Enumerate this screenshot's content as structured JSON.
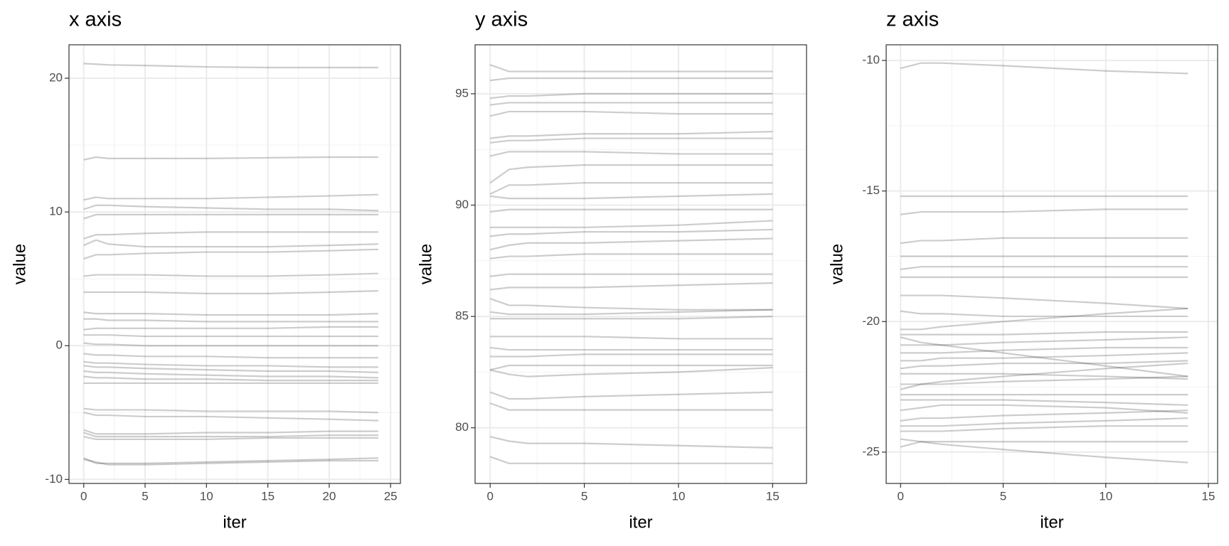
{
  "chart_data": [
    {
      "type": "line",
      "title": "x axis",
      "x_label": "iter",
      "y_label": "value",
      "color": "#000000",
      "opacity": 0.2,
      "grid": true,
      "xlim": [
        -1.2,
        25.8
      ],
      "xticks": [
        0,
        5,
        10,
        15,
        20,
        25
      ],
      "ylim": [
        -10.3,
        22.5
      ],
      "yticks": [
        -10,
        0,
        10,
        20
      ],
      "x": [
        0,
        1,
        2,
        5,
        10,
        15,
        20,
        24
      ],
      "series": [
        {
          "values": [
            21.1,
            21.05,
            21.0,
            20.95,
            20.85,
            20.8,
            20.8,
            20.8
          ]
        },
        {
          "values": [
            13.9,
            14.1,
            14.0,
            14.0,
            14.0,
            14.05,
            14.1,
            14.1
          ]
        },
        {
          "values": [
            10.9,
            11.1,
            11.0,
            11.0,
            11.0,
            11.1,
            11.2,
            11.3
          ]
        },
        {
          "values": [
            10.2,
            10.5,
            10.5,
            10.4,
            10.3,
            10.2,
            10.2,
            10.1
          ]
        },
        {
          "values": [
            9.5,
            9.8,
            9.8,
            9.8,
            9.8,
            9.8,
            9.8,
            9.8
          ]
        },
        {
          "values": [
            8.0,
            8.3,
            8.3,
            8.4,
            8.5,
            8.5,
            8.5,
            8.5
          ]
        },
        {
          "values": [
            7.5,
            7.9,
            7.6,
            7.4,
            7.4,
            7.4,
            7.5,
            7.6
          ]
        },
        {
          "values": [
            6.5,
            6.8,
            6.8,
            6.9,
            7.0,
            7.0,
            7.1,
            7.2
          ]
        },
        {
          "values": [
            5.2,
            5.3,
            5.3,
            5.3,
            5.2,
            5.2,
            5.3,
            5.4
          ]
        },
        {
          "values": [
            4.0,
            4.0,
            4.0,
            4.0,
            3.9,
            3.9,
            4.0,
            4.1
          ]
        },
        {
          "values": [
            2.5,
            2.4,
            2.4,
            2.4,
            2.3,
            2.3,
            2.3,
            2.4
          ]
        },
        {
          "values": [
            2.0,
            2.0,
            1.9,
            1.9,
            1.8,
            1.8,
            1.8,
            1.8
          ]
        },
        {
          "values": [
            1.2,
            1.3,
            1.3,
            1.3,
            1.3,
            1.3,
            1.4,
            1.4
          ]
        },
        {
          "values": [
            0.8,
            0.8,
            0.8,
            0.7,
            0.7,
            0.7,
            0.7,
            0.7
          ]
        },
        {
          "values": [
            0.2,
            0.1,
            0.1,
            0.0,
            0.0,
            0.0,
            0.0,
            0.0
          ]
        },
        {
          "values": [
            -0.6,
            -0.7,
            -0.7,
            -0.8,
            -0.8,
            -0.9,
            -0.9,
            -0.9
          ]
        },
        {
          "values": [
            -1.2,
            -1.3,
            -1.3,
            -1.4,
            -1.5,
            -1.5,
            -1.6,
            -1.6
          ]
        },
        {
          "values": [
            -1.5,
            -1.6,
            -1.6,
            -1.7,
            -1.8,
            -1.9,
            -1.9,
            -2.0
          ]
        },
        {
          "values": [
            -1.9,
            -2.0,
            -2.0,
            -2.1,
            -2.2,
            -2.3,
            -2.3,
            -2.4
          ]
        },
        {
          "values": [
            -2.3,
            -2.4,
            -2.4,
            -2.5,
            -2.5,
            -2.6,
            -2.6,
            -2.6
          ]
        },
        {
          "values": [
            -2.8,
            -2.8,
            -2.8,
            -2.8,
            -2.8,
            -2.8,
            -2.8,
            -2.8
          ]
        },
        {
          "values": [
            -4.7,
            -4.8,
            -4.8,
            -4.8,
            -4.9,
            -4.9,
            -4.9,
            -5.0
          ]
        },
        {
          "values": [
            -5.0,
            -5.2,
            -5.2,
            -5.3,
            -5.3,
            -5.4,
            -5.5,
            -5.6
          ]
        },
        {
          "values": [
            -6.3,
            -6.6,
            -6.6,
            -6.6,
            -6.5,
            -6.5,
            -6.4,
            -6.4
          ]
        },
        {
          "values": [
            -6.5,
            -6.8,
            -6.8,
            -6.8,
            -6.8,
            -6.8,
            -6.7,
            -6.7
          ]
        },
        {
          "values": [
            -6.8,
            -7.0,
            -7.0,
            -7.0,
            -7.0,
            -6.9,
            -6.9,
            -6.9
          ]
        },
        {
          "values": [
            -8.4,
            -8.8,
            -8.8,
            -8.8,
            -8.7,
            -8.6,
            -8.5,
            -8.4
          ]
        },
        {
          "values": [
            -8.5,
            -8.7,
            -8.9,
            -8.9,
            -8.8,
            -8.7,
            -8.6,
            -8.6
          ]
        }
      ]
    },
    {
      "type": "line",
      "title": "y axis",
      "x_label": "iter",
      "y_label": "value",
      "color": "#000000",
      "opacity": 0.2,
      "grid": true,
      "xlim": [
        -0.8,
        16.8
      ],
      "xticks": [
        0,
        5,
        10,
        15
      ],
      "ylim": [
        77.5,
        97.2
      ],
      "yticks": [
        80,
        85,
        90,
        95
      ],
      "x": [
        0,
        1,
        2,
        5,
        10,
        15
      ],
      "series": [
        {
          "values": [
            96.3,
            96.0,
            96.0,
            96.0,
            96.0,
            96.0
          ]
        },
        {
          "values": [
            95.6,
            95.7,
            95.7,
            95.7,
            95.7,
            95.7
          ]
        },
        {
          "values": [
            94.8,
            94.9,
            94.9,
            95.0,
            95.0,
            95.0
          ]
        },
        {
          "values": [
            94.5,
            94.6,
            94.6,
            94.6,
            94.6,
            94.6
          ]
        },
        {
          "values": [
            94.0,
            94.2,
            94.2,
            94.2,
            94.1,
            94.1
          ]
        },
        {
          "values": [
            93.0,
            93.1,
            93.1,
            93.2,
            93.2,
            93.3
          ]
        },
        {
          "values": [
            92.8,
            92.9,
            92.9,
            93.0,
            93.0,
            93.0
          ]
        },
        {
          "values": [
            92.2,
            92.4,
            92.4,
            92.4,
            92.3,
            92.3
          ]
        },
        {
          "values": [
            91.0,
            91.6,
            91.7,
            91.8,
            91.8,
            91.8
          ]
        },
        {
          "values": [
            90.5,
            90.9,
            90.9,
            91.0,
            91.0,
            91.0
          ]
        },
        {
          "values": [
            90.4,
            90.3,
            90.3,
            90.3,
            90.4,
            90.5
          ]
        },
        {
          "values": [
            89.7,
            89.8,
            89.8,
            89.8,
            89.8,
            89.8
          ]
        },
        {
          "values": [
            89.0,
            89.0,
            89.0,
            89.0,
            89.1,
            89.3
          ]
        },
        {
          "values": [
            88.6,
            88.7,
            88.7,
            88.8,
            88.8,
            88.9
          ]
        },
        {
          "values": [
            88.0,
            88.2,
            88.3,
            88.3,
            88.4,
            88.5
          ]
        },
        {
          "values": [
            87.6,
            87.7,
            87.7,
            87.8,
            87.8,
            87.8
          ]
        },
        {
          "values": [
            86.8,
            86.9,
            86.9,
            86.9,
            86.9,
            86.9
          ]
        },
        {
          "values": [
            86.2,
            86.3,
            86.3,
            86.3,
            86.4,
            86.5
          ]
        },
        {
          "values": [
            85.8,
            85.5,
            85.5,
            85.4,
            85.3,
            85.3
          ]
        },
        {
          "values": [
            85.2,
            85.1,
            85.1,
            85.1,
            85.2,
            85.3
          ]
        },
        {
          "values": [
            84.9,
            84.9,
            84.9,
            84.9,
            84.9,
            85.0
          ]
        },
        {
          "values": [
            84.1,
            84.1,
            84.1,
            84.1,
            84.0,
            84.0
          ]
        },
        {
          "values": [
            83.6,
            83.5,
            83.5,
            83.5,
            83.5,
            83.5
          ]
        },
        {
          "values": [
            83.2,
            83.2,
            83.2,
            83.3,
            83.3,
            83.3
          ]
        },
        {
          "values": [
            82.6,
            82.8,
            82.8,
            82.8,
            82.8,
            82.8
          ]
        },
        {
          "values": [
            82.6,
            82.4,
            82.3,
            82.4,
            82.5,
            82.7
          ]
        },
        {
          "values": [
            81.6,
            81.3,
            81.3,
            81.4,
            81.5,
            81.6
          ]
        },
        {
          "values": [
            81.1,
            80.8,
            80.8,
            80.8,
            80.8,
            80.8
          ]
        },
        {
          "values": [
            79.6,
            79.4,
            79.3,
            79.3,
            79.2,
            79.1
          ]
        },
        {
          "values": [
            78.7,
            78.4,
            78.4,
            78.4,
            78.4,
            78.4
          ]
        }
      ]
    },
    {
      "type": "line",
      "title": "z axis",
      "x_label": "iter",
      "y_label": "value",
      "color": "#000000",
      "opacity": 0.2,
      "grid": true,
      "xlim": [
        -0.7,
        15.45
      ],
      "xticks": [
        0,
        5,
        10,
        15
      ],
      "ylim": [
        -26.2,
        -9.4
      ],
      "yticks": [
        -25,
        -20,
        -15,
        -10
      ],
      "x": [
        0,
        1,
        2,
        5,
        10,
        14
      ],
      "series": [
        {
          "values": [
            -10.3,
            -10.1,
            -10.1,
            -10.2,
            -10.4,
            -10.5
          ]
        },
        {
          "values": [
            -15.2,
            -15.2,
            -15.2,
            -15.2,
            -15.2,
            -15.2
          ]
        },
        {
          "values": [
            -15.9,
            -15.8,
            -15.8,
            -15.8,
            -15.7,
            -15.7
          ]
        },
        {
          "values": [
            -17.0,
            -16.9,
            -16.9,
            -16.8,
            -16.8,
            -16.8
          ]
        },
        {
          "values": [
            -17.5,
            -17.5,
            -17.5,
            -17.5,
            -17.5,
            -17.5
          ]
        },
        {
          "values": [
            -18.0,
            -17.9,
            -17.9,
            -17.9,
            -17.9,
            -17.9
          ]
        },
        {
          "values": [
            -18.3,
            -18.3,
            -18.3,
            -18.3,
            -18.3,
            -18.3
          ]
        },
        {
          "values": [
            -19.0,
            -19.0,
            -19.0,
            -19.1,
            -19.3,
            -19.5
          ]
        },
        {
          "values": [
            -19.6,
            -19.7,
            -19.7,
            -19.8,
            -19.8,
            -19.8
          ]
        },
        {
          "values": [
            -20.3,
            -20.3,
            -20.2,
            -20.0,
            -19.7,
            -19.5
          ]
        },
        {
          "values": [
            -20.5,
            -20.5,
            -20.5,
            -20.5,
            -20.4,
            -20.4
          ]
        },
        {
          "values": [
            -20.9,
            -20.9,
            -20.9,
            -20.8,
            -20.7,
            -20.6
          ]
        },
        {
          "values": [
            -21.2,
            -21.2,
            -21.2,
            -21.1,
            -21.0,
            -21.0
          ]
        },
        {
          "values": [
            -21.5,
            -21.5,
            -21.4,
            -21.4,
            -21.3,
            -21.2
          ]
        },
        {
          "values": [
            -21.8,
            -21.7,
            -21.7,
            -21.6,
            -21.6,
            -21.5
          ]
        },
        {
          "values": [
            -22.0,
            -22.0,
            -22.0,
            -22.0,
            -22.1,
            -22.2
          ]
        },
        {
          "values": [
            -22.4,
            -22.4,
            -22.4,
            -22.3,
            -22.2,
            -22.1
          ]
        },
        {
          "values": [
            -22.8,
            -22.8,
            -22.8,
            -22.8,
            -22.8,
            -22.8
          ]
        },
        {
          "values": [
            -23.0,
            -23.0,
            -23.0,
            -23.0,
            -23.1,
            -23.2
          ]
        },
        {
          "values": [
            -23.4,
            -23.3,
            -23.2,
            -23.2,
            -23.3,
            -23.5
          ]
        },
        {
          "values": [
            -23.8,
            -23.7,
            -23.7,
            -23.6,
            -23.5,
            -23.4
          ]
        },
        {
          "values": [
            -24.0,
            -24.0,
            -24.0,
            -23.9,
            -23.8,
            -23.7
          ]
        },
        {
          "values": [
            -24.2,
            -24.2,
            -24.2,
            -24.1,
            -24.0,
            -24.0
          ]
        },
        {
          "values": [
            -24.5,
            -24.6,
            -24.6,
            -24.6,
            -24.6,
            -24.6
          ]
        },
        {
          "values": [
            -24.8,
            -24.6,
            -24.7,
            -24.9,
            -25.2,
            -25.4
          ]
        },
        {
          "values": [
            -20.6,
            -20.8,
            -20.9,
            -21.2,
            -21.7,
            -22.1
          ]
        },
        {
          "values": [
            -22.6,
            -22.4,
            -22.3,
            -22.1,
            -21.8,
            -21.6
          ]
        }
      ]
    }
  ]
}
